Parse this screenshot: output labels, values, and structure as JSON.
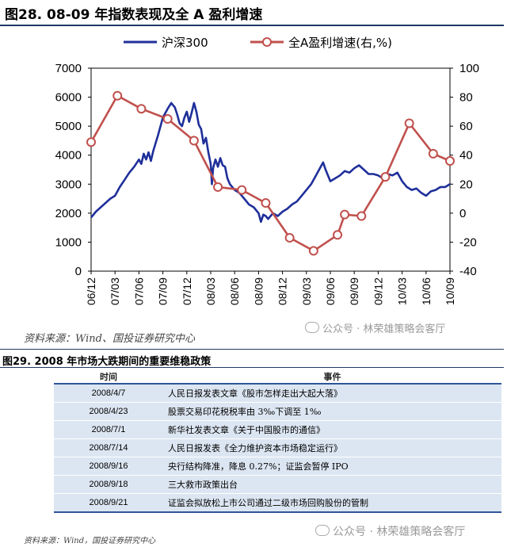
{
  "figure": {
    "title": "图28. 08-09 年指数表现及全 A 盈利增速"
  },
  "chart_data": {
    "type": "line",
    "legend_position": "top",
    "grid": false,
    "x_ticks": [
      "06/12",
      "07/03",
      "07/06",
      "07/09",
      "07/12",
      "08/03",
      "08/06",
      "08/09",
      "08/12",
      "09/03",
      "09/06",
      "09/09",
      "09/12",
      "10/03",
      "10/06",
      "10/09"
    ],
    "y_left": {
      "ticks": [
        "0",
        "1000",
        "2000",
        "3000",
        "4000",
        "5000",
        "6000",
        "7000"
      ],
      "lim": [
        0,
        7000
      ]
    },
    "y_right": {
      "ticks": [
        "-40",
        "-20",
        "0",
        "20",
        "40",
        "60",
        "80",
        "100"
      ],
      "lim": [
        -40,
        100
      ]
    },
    "series": [
      {
        "name": "沪深300",
        "axis": "left",
        "color": "#1f2f9a",
        "points": [
          [
            0,
            1850
          ],
          [
            0.2,
            2050
          ],
          [
            0.4,
            2200
          ],
          [
            0.6,
            2350
          ],
          [
            0.8,
            2500
          ],
          [
            1.0,
            2600
          ],
          [
            1.2,
            2900
          ],
          [
            1.4,
            3150
          ],
          [
            1.6,
            3400
          ],
          [
            1.8,
            3600
          ],
          [
            2.0,
            3850
          ],
          [
            2.1,
            3700
          ],
          [
            2.2,
            4050
          ],
          [
            2.3,
            3850
          ],
          [
            2.4,
            4100
          ],
          [
            2.5,
            3800
          ],
          [
            2.6,
            4150
          ],
          [
            2.8,
            4700
          ],
          [
            3.0,
            5300
          ],
          [
            3.2,
            5600
          ],
          [
            3.35,
            5800
          ],
          [
            3.5,
            5650
          ],
          [
            3.6,
            5400
          ],
          [
            3.7,
            5100
          ],
          [
            3.8,
            5000
          ],
          [
            3.9,
            5300
          ],
          [
            4.0,
            5500
          ],
          [
            4.1,
            5150
          ],
          [
            4.2,
            5450
          ],
          [
            4.3,
            5800
          ],
          [
            4.4,
            5500
          ],
          [
            4.5,
            5050
          ],
          [
            4.6,
            4900
          ],
          [
            4.7,
            4400
          ],
          [
            4.8,
            4600
          ],
          [
            4.9,
            4100
          ],
          [
            5.0,
            3700
          ],
          [
            5.05,
            3000
          ],
          [
            5.1,
            3550
          ],
          [
            5.2,
            3850
          ],
          [
            5.3,
            3600
          ],
          [
            5.4,
            3900
          ],
          [
            5.5,
            3650
          ],
          [
            5.6,
            3600
          ],
          [
            5.7,
            3200
          ],
          [
            5.8,
            3000
          ],
          [
            5.9,
            2900
          ],
          [
            6.0,
            2800
          ],
          [
            6.2,
            2700
          ],
          [
            6.4,
            2500
          ],
          [
            6.6,
            2300
          ],
          [
            6.8,
            2200
          ],
          [
            7.0,
            2000
          ],
          [
            7.1,
            1700
          ],
          [
            7.2,
            1950
          ],
          [
            7.3,
            1900
          ],
          [
            7.4,
            1800
          ],
          [
            7.6,
            2000
          ],
          [
            7.8,
            1900
          ],
          [
            8.0,
            2050
          ],
          [
            8.2,
            2150
          ],
          [
            8.4,
            2300
          ],
          [
            8.6,
            2400
          ],
          [
            8.8,
            2600
          ],
          [
            9.0,
            2800
          ],
          [
            9.2,
            3000
          ],
          [
            9.4,
            3300
          ],
          [
            9.6,
            3600
          ],
          [
            9.7,
            3750
          ],
          [
            9.8,
            3500
          ],
          [
            10.0,
            3100
          ],
          [
            10.2,
            3200
          ],
          [
            10.4,
            3300
          ],
          [
            10.6,
            3450
          ],
          [
            10.8,
            3400
          ],
          [
            11.0,
            3550
          ],
          [
            11.2,
            3650
          ],
          [
            11.4,
            3500
          ],
          [
            11.6,
            3350
          ],
          [
            11.8,
            3350
          ],
          [
            12.0,
            3300
          ],
          [
            12.2,
            3200
          ],
          [
            12.4,
            3350
          ],
          [
            12.6,
            3300
          ],
          [
            12.8,
            3400
          ],
          [
            13.0,
            3100
          ],
          [
            13.2,
            2900
          ],
          [
            13.4,
            2800
          ],
          [
            13.6,
            2850
          ],
          [
            13.8,
            2700
          ],
          [
            14.0,
            2600
          ],
          [
            14.2,
            2750
          ],
          [
            14.4,
            2800
          ],
          [
            14.6,
            2900
          ],
          [
            14.8,
            2900
          ],
          [
            15.0,
            3000
          ]
        ]
      },
      {
        "name": "全A盈利增速(右,%)",
        "axis": "right",
        "color": "#c0504d",
        "points": [
          [
            0,
            49
          ],
          [
            1.1,
            81
          ],
          [
            2.1,
            72
          ],
          [
            3.2,
            65
          ],
          [
            4.3,
            50
          ],
          [
            5.3,
            18
          ],
          [
            6.3,
            16
          ],
          [
            7.3,
            7
          ],
          [
            8.3,
            -17
          ],
          [
            9.3,
            -26
          ],
          [
            10.3,
            -15
          ],
          [
            10.6,
            -1
          ],
          [
            11.3,
            -2
          ],
          [
            12.3,
            25
          ],
          [
            13.3,
            62
          ],
          [
            14.3,
            41
          ],
          [
            15.0,
            36
          ]
        ]
      }
    ]
  },
  "source1": "资料来源：Wind、国投证券研究中心",
  "watermark": "公众号 · 林荣雄策略会客厅",
  "table": {
    "title": "图29. 2008 年市场大跌期间的重要维稳政策",
    "headers": [
      "时间",
      "事件"
    ],
    "rows": [
      [
        "2008/4/7",
        "人民日报发表文章《股市怎样走出大起大落》"
      ],
      [
        "2008/4/23",
        "股票交易印花税税率由 3‰下调至 1‰"
      ],
      [
        "2008/7/1",
        "新华社发表文章《关于中国股市的通信》"
      ],
      [
        "2008/7/14",
        "人民日报发表《全力维护资本市场稳定运行》"
      ],
      [
        "2008/9/16",
        "央行结构降准，降息 0.27%；证监会暂停 IPO"
      ],
      [
        "2008/9/18",
        "三大救市政策出台"
      ],
      [
        "2008/9/21",
        "证监会拟放松上市公司通过二级市场回购股份的管制"
      ]
    ]
  },
  "source2": "资料来源：Wind，国投证券研究中心"
}
